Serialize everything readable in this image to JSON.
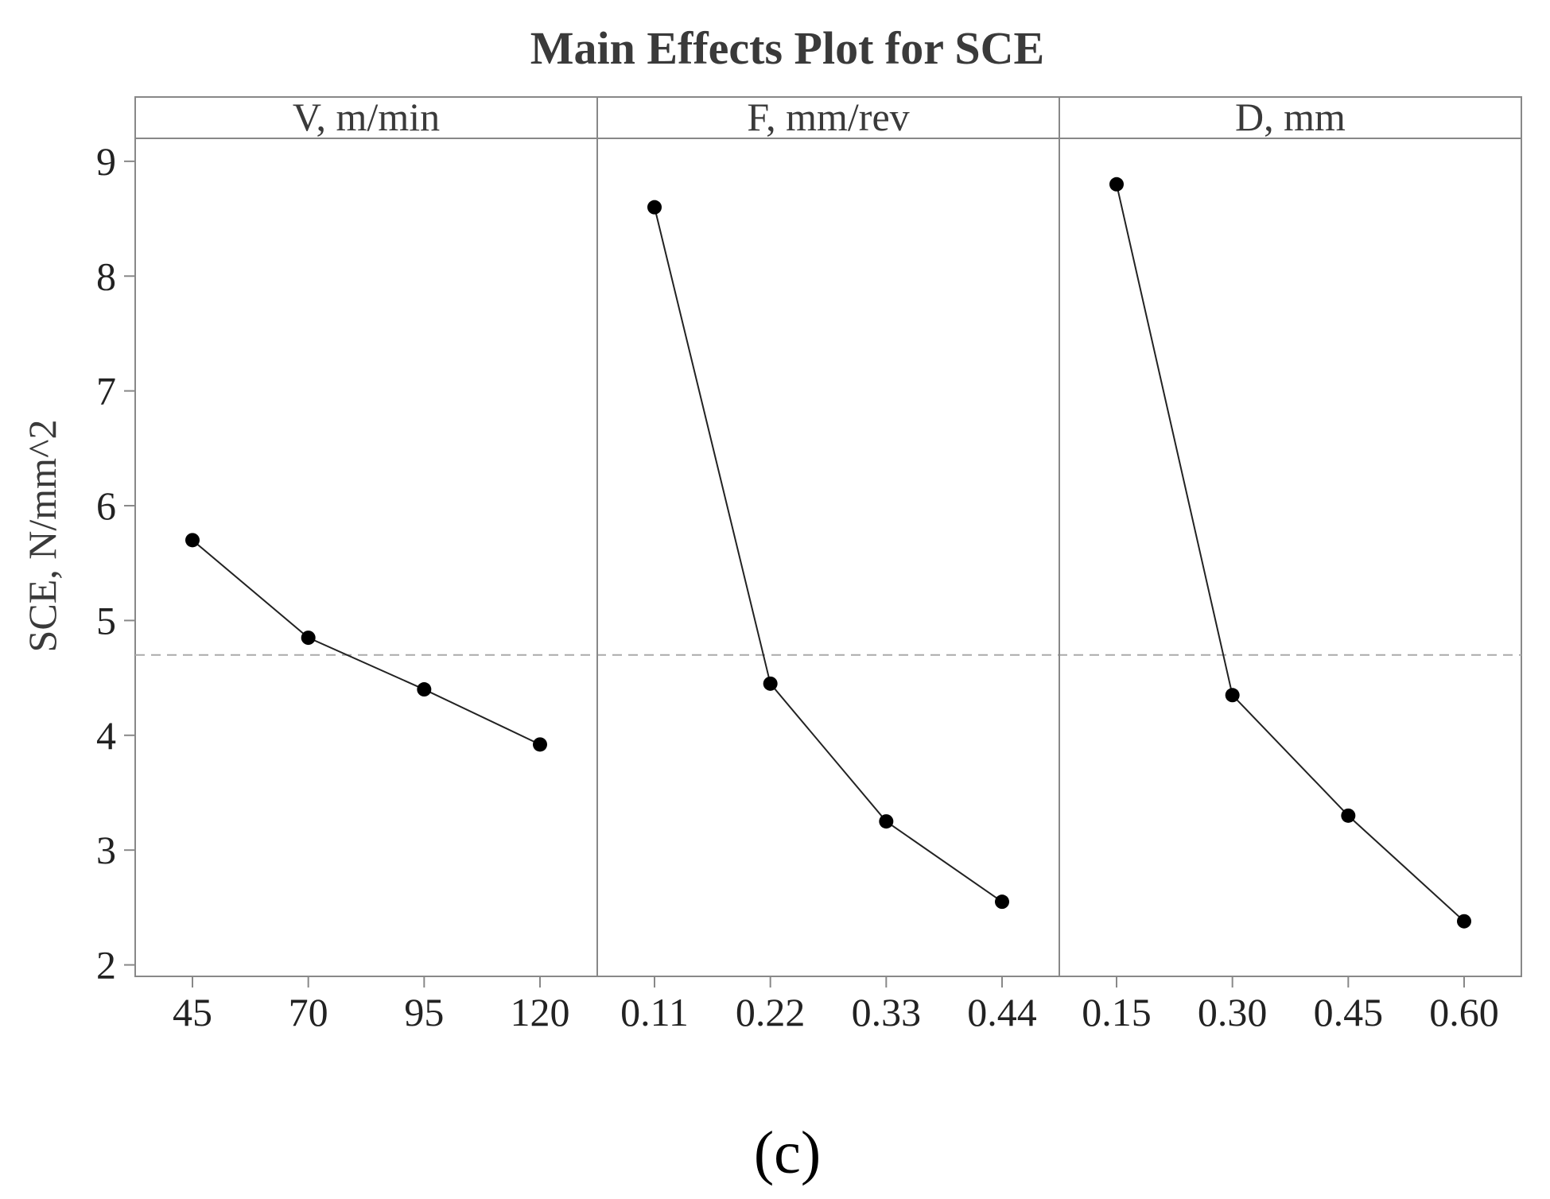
{
  "chart_data": {
    "type": "line",
    "title": "Main Effects Plot for SCE",
    "ylabel": "SCE, N/mm^2",
    "ylim": [
      1.9,
      9.2
    ],
    "yticks": [
      "2",
      "3",
      "4",
      "5",
      "6",
      "7",
      "8",
      "9"
    ],
    "mean_reference": 4.7,
    "caption": "(c)",
    "colors": {
      "line": "#222222",
      "marker": "#000000",
      "frame": "#888888",
      "reference": "#aaaaaa"
    },
    "panels": [
      {
        "name": "V, m/min",
        "categories": [
          "45",
          "70",
          "95",
          "120"
        ],
        "values": [
          5.7,
          4.85,
          4.4,
          3.92
        ]
      },
      {
        "name": "F, mm/rev",
        "categories": [
          "0.11",
          "0.22",
          "0.33",
          "0.44"
        ],
        "values": [
          8.6,
          4.45,
          3.25,
          2.55
        ]
      },
      {
        "name": "D, mm",
        "categories": [
          "0.15",
          "0.30",
          "0.45",
          "0.60"
        ],
        "values": [
          8.8,
          4.35,
          3.3,
          2.38
        ]
      }
    ]
  }
}
